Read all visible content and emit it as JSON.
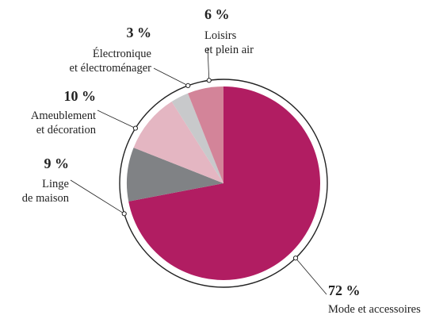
{
  "chart_data": {
    "type": "pie",
    "slices": [
      {
        "name_lines": [
          "Mode et accessoires"
        ],
        "value": 72,
        "label": "72 %",
        "color": "#b11d62"
      },
      {
        "name_lines": [
          "Linge",
          "de maison"
        ],
        "value": 9,
        "label": "9 %",
        "color": "#808285"
      },
      {
        "name_lines": [
          "Ameublement",
          "et décoration"
        ],
        "value": 10,
        "label": "10 %",
        "color": "#e4b6c2"
      },
      {
        "name_lines": [
          "Électronique",
          "et électroménager"
        ],
        "value": 3,
        "label": "3 %",
        "color": "#c8c9cb"
      },
      {
        "name_lines": [
          "Loisirs",
          "et plein air"
        ],
        "value": 6,
        "label": "6 %",
        "color": "#d38499"
      }
    ],
    "start": "12 o'clock",
    "direction": "clockwise",
    "outer_ring": true
  }
}
